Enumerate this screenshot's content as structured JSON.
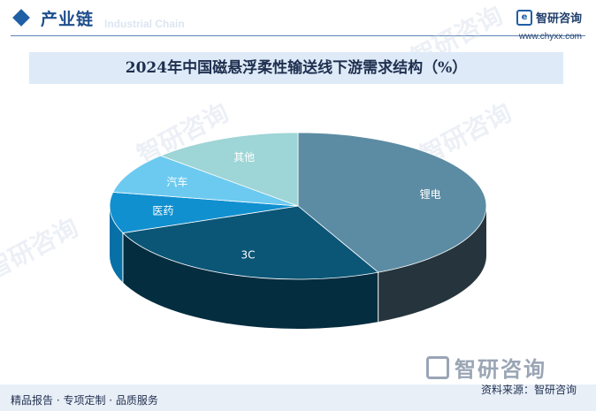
{
  "header": {
    "section_title": "产业链",
    "section_subtitle": "Industrial Chain",
    "brand_name": "智研咨询",
    "brand_url": "www.chyxx.com"
  },
  "chart_data": {
    "type": "pie",
    "title": "2024年中国磁悬浮柔性输送线下游需求结构（%）",
    "categories": [
      "锂电",
      "3C",
      "医药",
      "汽车",
      "其他"
    ],
    "values": [
      43,
      26,
      9,
      9,
      13
    ],
    "colors": [
      "#5c8ca3",
      "#0b5676",
      "#1190cf",
      "#6ccaf0",
      "#9ed5d6"
    ],
    "side_colors": [
      "#26353d",
      "#052d40",
      "#0770a7",
      "#3aa8d6",
      "#6fb3b4"
    ]
  },
  "footer": {
    "tagline": "精品报告 · 专项定制 · 品质服务",
    "source": "资料来源：智研咨询",
    "logo_text": "智研咨询"
  },
  "watermark_text": "智研咨询"
}
